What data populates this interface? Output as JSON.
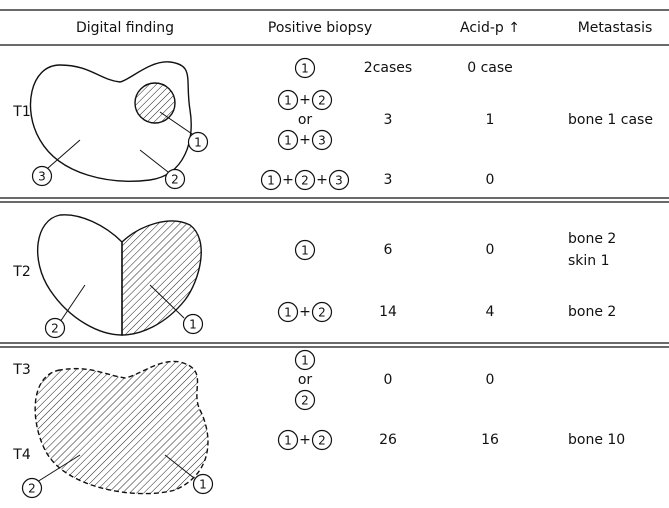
{
  "table": {
    "header": [
      "Digital finding",
      "Positive biopsy",
      "Acid-p ↑",
      "Metastasis"
    ],
    "groups": [
      {
        "stages": [
          "T1"
        ],
        "regions": [
          "1",
          "2",
          "3"
        ],
        "rows": [
          {
            "biopsy": [
              [
                "1"
              ]
            ],
            "cases": "2cases",
            "acid": "0 case"
          },
          {
            "biopsy": [
              [
                "1",
                "+",
                "2"
              ],
              [
                "or"
              ],
              [
                "1",
                "+",
                "3"
              ]
            ],
            "cases": 3,
            "acid": 1,
            "metastasis": [
              "bone 1 case"
            ]
          },
          {
            "biopsy": [
              [
                "1",
                "+",
                "2",
                "+",
                "3"
              ]
            ],
            "cases": 3,
            "acid": 0
          }
        ]
      },
      {
        "stages": [
          "T2"
        ],
        "regions": [
          "1",
          "2"
        ],
        "rows": [
          {
            "biopsy": [
              [
                "1"
              ]
            ],
            "cases": 6,
            "acid": 0,
            "metastasis": [
              "bone 2",
              "skin 1"
            ]
          },
          {
            "biopsy": [
              [
                "1",
                "+",
                "2"
              ]
            ],
            "cases": 14,
            "acid": 4,
            "metastasis": [
              "bone 2"
            ]
          }
        ]
      },
      {
        "stages": [
          "T3",
          "T4"
        ],
        "regions": [
          "1",
          "2"
        ],
        "rows": [
          {
            "biopsy": [
              [
                "1"
              ],
              [
                "or"
              ],
              [
                "2"
              ]
            ],
            "cases": 0,
            "acid": 0
          },
          {
            "biopsy": [
              [
                "1",
                "+",
                "2"
              ]
            ],
            "cases": 26,
            "acid": 16,
            "metastasis": [
              "bone 10"
            ]
          }
        ]
      }
    ]
  }
}
